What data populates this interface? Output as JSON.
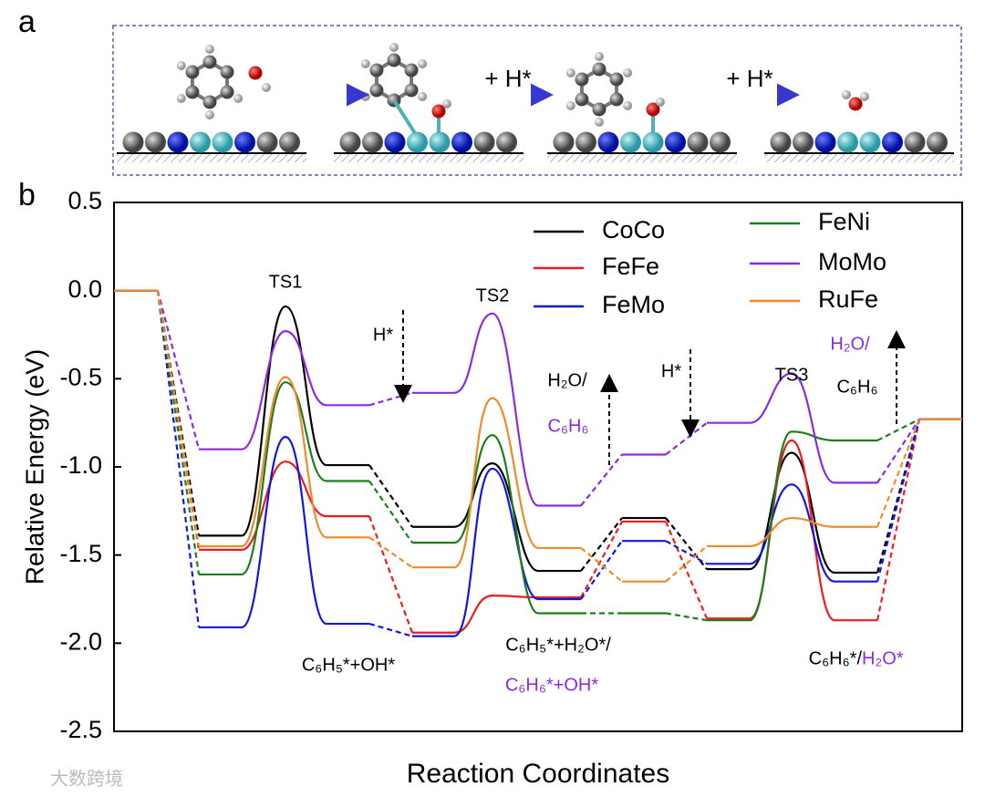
{
  "chart_data": {
    "type": "energy_profile",
    "panel_labels": [
      "a",
      "b"
    ],
    "schematic_labels": [
      "+ H*",
      "+ H*"
    ],
    "ylabel": "Relative Energy (eV)",
    "xlabel": "Reaction Coordinates",
    "ylim": [
      -2.5,
      0.5
    ],
    "yticks": [
      -2.5,
      {
        "value": -2.0,
        "label": "-2.0"
      },
      -1.5,
      {
        "value": -1.0,
        "label": "-1.0"
      },
      -0.5,
      {
        "value": 0.0,
        "label": "0.0"
      },
      0.5
    ],
    "categories": [
      null,
      null,
      null,
      null,
      null,
      null,
      null,
      null,
      null,
      null,
      null,
      null
    ],
    "series": [
      {
        "name": "CoCo",
        "color": "#000000",
        "values": [
          0,
          -1.39,
          -0.09,
          -0.99,
          -1.34,
          -0.98,
          -1.59,
          -1.29,
          -1.58,
          -0.92,
          -1.6,
          -0.73
        ]
      },
      {
        "name": "FeFe",
        "color": "#ee1c1c",
        "values": [
          0,
          -1.47,
          -0.97,
          -1.28,
          -1.94,
          -1.73,
          -1.74,
          -1.31,
          -1.86,
          -0.85,
          -1.87,
          -0.73
        ]
      },
      {
        "name": "FeMo",
        "color": "#1414e6",
        "values": [
          0,
          -1.91,
          -0.83,
          -1.89,
          -1.96,
          -1.01,
          -1.75,
          -1.42,
          -1.55,
          -1.1,
          -1.65,
          -0.73
        ]
      },
      {
        "name": "FeNi",
        "color": "#1a7f1a",
        "values": [
          0,
          -1.61,
          -0.52,
          -1.08,
          -1.43,
          -0.82,
          -1.83,
          -1.83,
          -1.87,
          -0.8,
          -0.85,
          -0.73
        ]
      },
      {
        "name": "MoMo",
        "color": "#8a2be2",
        "values": [
          0,
          -0.9,
          -0.23,
          -0.65,
          -0.58,
          -0.13,
          -1.22,
          -0.93,
          -0.75,
          -0.47,
          -1.09,
          -0.73
        ]
      },
      {
        "name": "RuFe",
        "color": "#ee8a2a",
        "values": [
          0,
          -1.45,
          -0.49,
          -1.4,
          -1.57,
          -0.61,
          -1.46,
          -1.65,
          -1.45,
          -1.29,
          -1.34,
          -0.73
        ]
      }
    ],
    "annotations": [
      {
        "text": "TS1",
        "color": "#000000"
      },
      {
        "text": "TS2",
        "color": "#000000"
      },
      {
        "text": "TS3",
        "color": "#000000"
      },
      {
        "text": "H*",
        "color": "#000000"
      },
      {
        "text": "H*",
        "color": "#000000"
      },
      {
        "text": "H₂O/",
        "color": "#000000"
      },
      {
        "text": "C₆H₆",
        "color": "#8a2be2"
      },
      {
        "text": "H₂O/",
        "color": "#8a2be2"
      },
      {
        "text": "C₆H₆",
        "color": "#000000"
      },
      {
        "text": "C₆H₅*+OH*",
        "color": "#000000"
      },
      {
        "text": "C₆H₅*+H₂O*/",
        "color": "#000000"
      },
      {
        "text": "C₆H₆*+OH*",
        "color": "#8a2be2"
      },
      {
        "text": "C₆H₆*/",
        "color": "#000000"
      },
      {
        "text": "H₂O*",
        "color": "#8a2be2"
      }
    ],
    "watermark": "大数跨境"
  }
}
